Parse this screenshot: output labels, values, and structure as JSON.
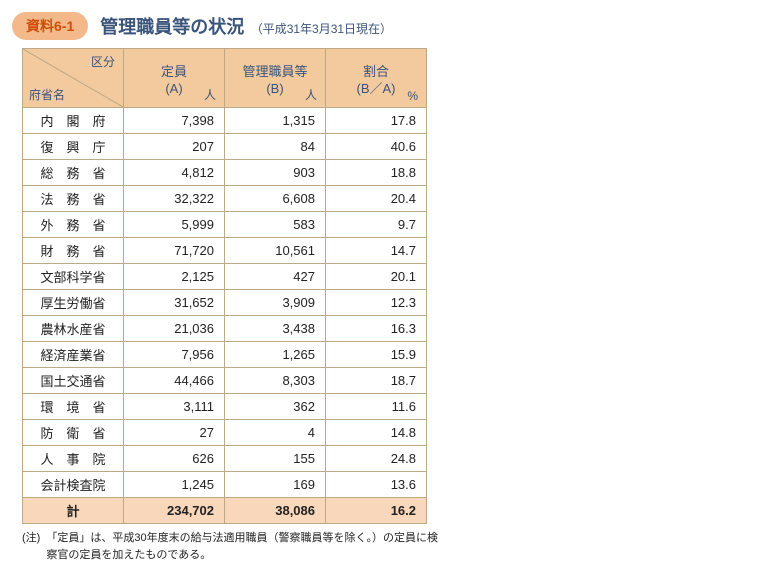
{
  "badge": "資料6-1",
  "title_main": "管理職員等の状況",
  "title_sub": "（平成31年3月31日現在）",
  "header": {
    "corner_top": "区分",
    "corner_bottom": "府省名",
    "columns": [
      {
        "line1": "定員",
        "line2": "(A)",
        "unit": "人"
      },
      {
        "line1": "管理職員等",
        "line2": "(B)",
        "unit": "人"
      },
      {
        "line1": "割合",
        "line2": "(B／A)",
        "unit": "%"
      }
    ]
  },
  "rows": [
    {
      "name": "内　閣　府",
      "a": "7,398",
      "b": "1,315",
      "r": "17.8"
    },
    {
      "name": "復　興　庁",
      "a": "207",
      "b": "84",
      "r": "40.6"
    },
    {
      "name": "総　務　省",
      "a": "4,812",
      "b": "903",
      "r": "18.8"
    },
    {
      "name": "法　務　省",
      "a": "32,322",
      "b": "6,608",
      "r": "20.4"
    },
    {
      "name": "外　務　省",
      "a": "5,999",
      "b": "583",
      "r": "9.7"
    },
    {
      "name": "財　務　省",
      "a": "71,720",
      "b": "10,561",
      "r": "14.7"
    },
    {
      "name": "文部科学省",
      "a": "2,125",
      "b": "427",
      "r": "20.1"
    },
    {
      "name": "厚生労働省",
      "a": "31,652",
      "b": "3,909",
      "r": "12.3"
    },
    {
      "name": "農林水産省",
      "a": "21,036",
      "b": "3,438",
      "r": "16.3"
    },
    {
      "name": "経済産業省",
      "a": "7,956",
      "b": "1,265",
      "r": "15.9"
    },
    {
      "name": "国土交通省",
      "a": "44,466",
      "b": "8,303",
      "r": "18.7"
    },
    {
      "name": "環　境　省",
      "a": "3,111",
      "b": "362",
      "r": "11.6"
    },
    {
      "name": "防　衛　省",
      "a": "27",
      "b": "4",
      "r": "14.8"
    },
    {
      "name": "人　事　院",
      "a": "626",
      "b": "155",
      "r": "24.8"
    },
    {
      "name": "会計検査院",
      "a": "1,245",
      "b": "169",
      "r": "13.6"
    }
  ],
  "total": {
    "name": "計",
    "a": "234,702",
    "b": "38,086",
    "r": "16.2"
  },
  "note_tag": "(注)",
  "note_text": "「定員」は、平成30年度末の給与法適用職員（警察職員等を除く。）の定員に検察官の定員を加えたものである。",
  "colors": {
    "header_bg": "#f2ca9e",
    "total_bg": "#f9d7bb",
    "border": "#bfa886",
    "title_color": "#3a547a",
    "badge_bg": "#f4b98a",
    "badge_fg": "#d14d0a"
  }
}
